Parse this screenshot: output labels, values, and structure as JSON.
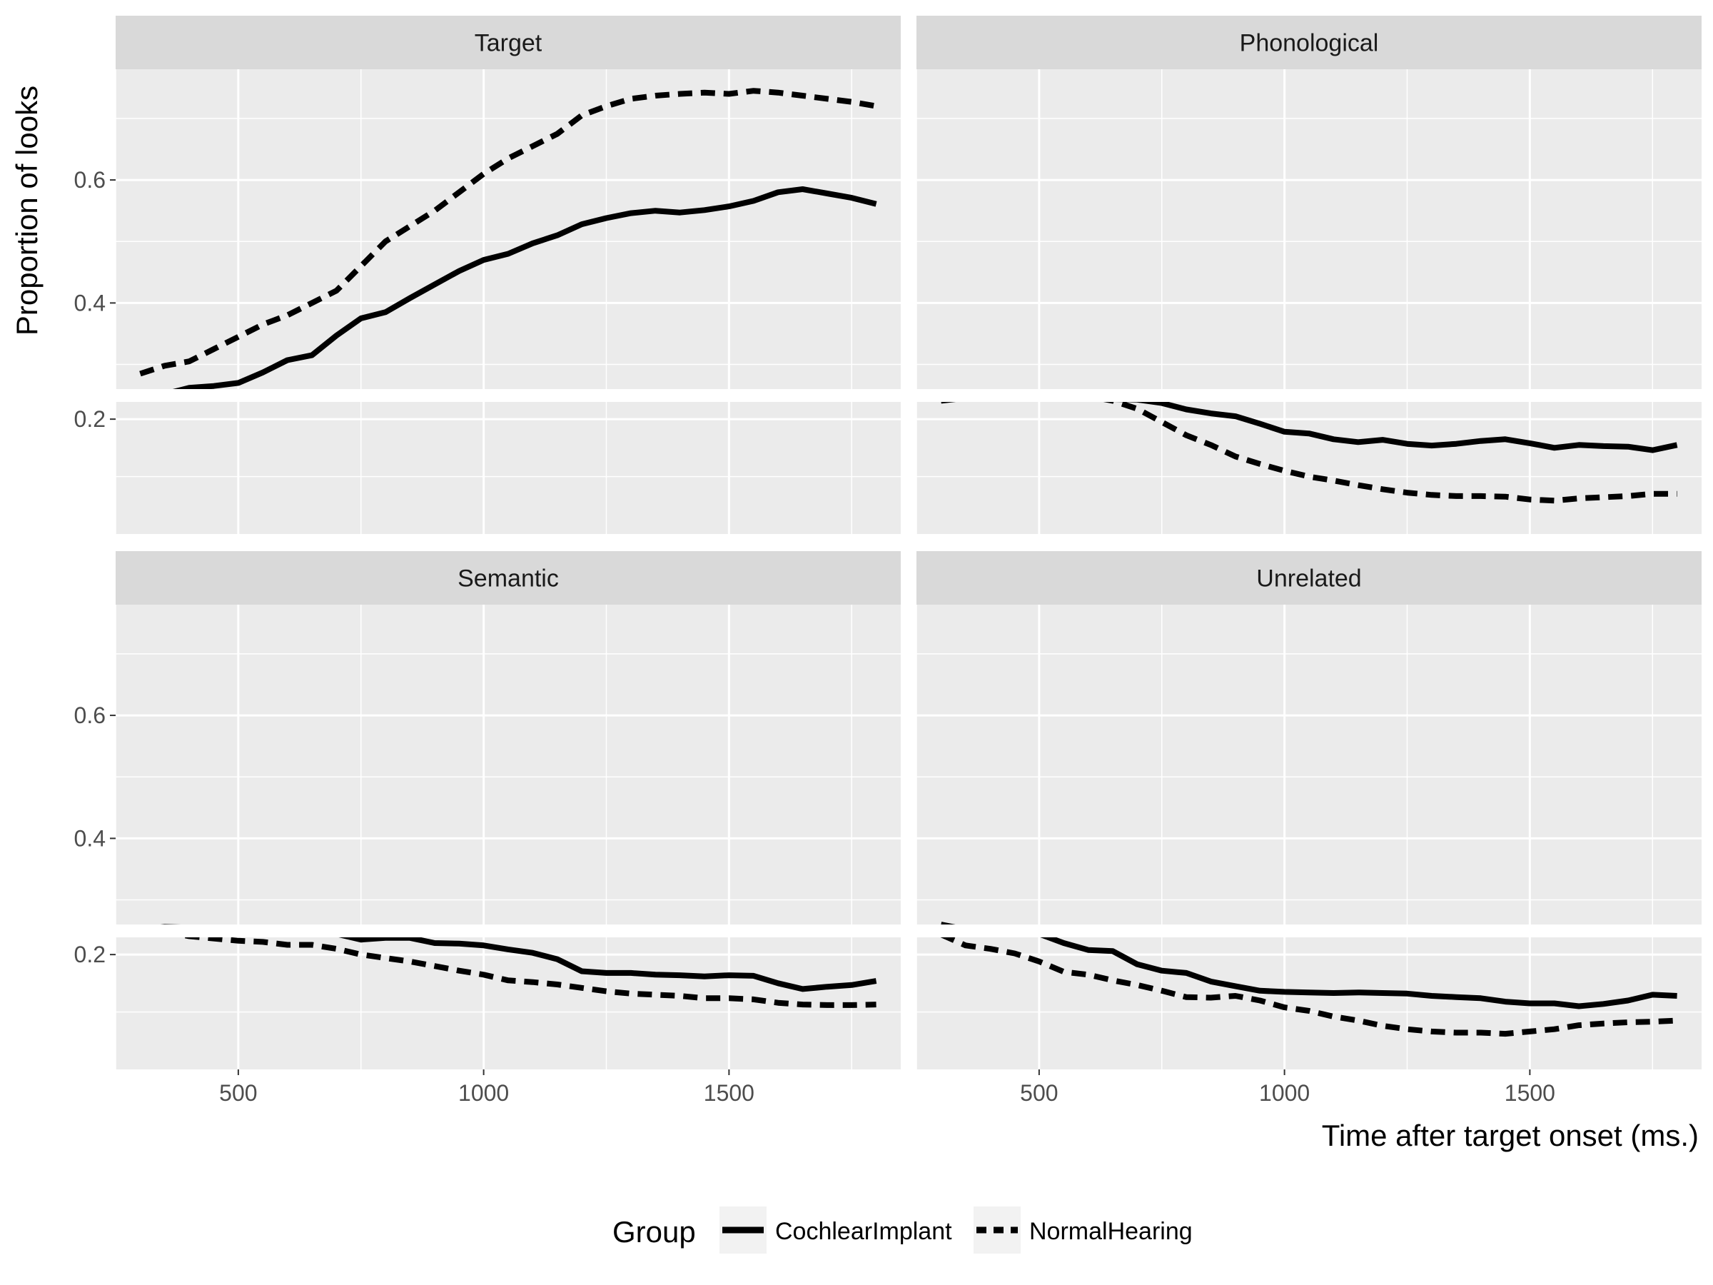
{
  "chart_data": {
    "type": "line",
    "facet_layout": "2x2 grid",
    "y_axis_break": "broken y axis between 0.23 and 0.26",
    "xlabel": "Time after target onset (ms.)",
    "ylabel": "Proportion of looks",
    "xlim": [
      250,
      1850
    ],
    "xticks": [
      500,
      1000,
      1500
    ],
    "yticks": [
      0.2,
      0.4,
      0.6
    ],
    "ylim_lower": [
      0.0,
      0.23
    ],
    "ylim_upper": [
      0.26,
      0.78
    ],
    "grid": true,
    "legend": {
      "title": "Group",
      "placement": "bottom",
      "entries": [
        {
          "label": "CochlearImplant",
          "linetype": "solid"
        },
        {
          "label": "NormalHearing",
          "linetype": "dashed"
        }
      ]
    },
    "panels": [
      {
        "title": "Target",
        "series": [
          {
            "name": "CochlearImplant",
            "linetype": "solid",
            "x": [
              300,
              350,
              400,
              450,
              500,
              550,
              600,
              650,
              700,
              750,
              800,
              850,
              900,
              950,
              1000,
              1050,
              1100,
              1150,
              1200,
              1250,
              1300,
              1350,
              1400,
              1450,
              1500,
              1550,
              1600,
              1650,
              1700,
              1750,
              1800
            ],
            "y": [
              0.255,
              0.252,
              0.262,
              0.265,
              0.27,
              0.287,
              0.307,
              0.315,
              0.347,
              0.375,
              0.385,
              0.408,
              0.43,
              0.452,
              0.47,
              0.48,
              0.497,
              0.51,
              0.528,
              0.538,
              0.546,
              0.55,
              0.547,
              0.551,
              0.557,
              0.566,
              0.58,
              0.585,
              0.578,
              0.571,
              0.561
            ]
          },
          {
            "name": "NormalHearing",
            "linetype": "dashed",
            "x": [
              300,
              350,
              400,
              450,
              500,
              550,
              600,
              650,
              700,
              750,
              800,
              850,
              900,
              950,
              1000,
              1050,
              1100,
              1150,
              1200,
              1250,
              1300,
              1350,
              1400,
              1450,
              1500,
              1550,
              1600,
              1650,
              1700,
              1750,
              1800
            ],
            "y": [
              0.285,
              0.298,
              0.305,
              0.325,
              0.345,
              0.365,
              0.38,
              0.4,
              0.42,
              0.46,
              0.5,
              0.525,
              0.55,
              0.58,
              0.61,
              0.635,
              0.655,
              0.675,
              0.705,
              0.72,
              0.732,
              0.737,
              0.74,
              0.742,
              0.74,
              0.745,
              0.742,
              0.737,
              0.732,
              0.727,
              0.72
            ]
          }
        ]
      },
      {
        "title": "Phonological",
        "series": [
          {
            "name": "CochlearImplant",
            "linetype": "solid",
            "x": [
              300,
              350,
              400,
              450,
              500,
              550,
              600,
              650,
              700,
              750,
              800,
              850,
              900,
              950,
              1000,
              1050,
              1100,
              1150,
              1200,
              1250,
              1300,
              1350,
              1400,
              1450,
              1500,
              1550,
              1600,
              1650,
              1700,
              1750,
              1800
            ],
            "y": [
              0.232,
              0.237,
              0.242,
              0.247,
              0.255,
              0.248,
              0.242,
              0.235,
              0.234,
              0.228,
              0.217,
              0.21,
              0.205,
              0.192,
              0.178,
              0.175,
              0.165,
              0.16,
              0.164,
              0.157,
              0.154,
              0.157,
              0.162,
              0.165,
              0.158,
              0.15,
              0.155,
              0.153,
              0.152,
              0.146,
              0.155
            ]
          },
          {
            "name": "NormalHearing",
            "linetype": "dashed",
            "x": [
              300,
              350,
              400,
              450,
              500,
              550,
              600,
              650,
              700,
              750,
              800,
              850,
              900,
              950,
              1000,
              1050,
              1100,
              1150,
              1200,
              1250,
              1300,
              1350,
              1400,
              1450,
              1500,
              1550,
              1600,
              1650,
              1700,
              1750,
              1800
            ],
            "y": [
              0.236,
              0.24,
              0.245,
              0.243,
              0.245,
              0.247,
              0.24,
              0.232,
              0.218,
              0.195,
              0.172,
              0.155,
              0.135,
              0.122,
              0.11,
              0.1,
              0.093,
              0.085,
              0.078,
              0.072,
              0.068,
              0.066,
              0.066,
              0.065,
              0.06,
              0.058,
              0.062,
              0.064,
              0.066,
              0.07,
              0.07
            ]
          }
        ]
      },
      {
        "title": "Semantic",
        "series": [
          {
            "name": "CochlearImplant",
            "linetype": "solid",
            "x": [
              300,
              350,
              400,
              450,
              500,
              550,
              600,
              650,
              700,
              750,
              800,
              850,
              900,
              950,
              1000,
              1050,
              1100,
              1150,
              1200,
              1250,
              1300,
              1350,
              1400,
              1450,
              1500,
              1550,
              1600,
              1650,
              1700,
              1750,
              1800
            ],
            "y": [
              0.252,
              0.256,
              0.255,
              0.246,
              0.238,
              0.242,
              0.242,
              0.243,
              0.236,
              0.226,
              0.229,
              0.229,
              0.22,
              0.219,
              0.216,
              0.209,
              0.203,
              0.192,
              0.171,
              0.168,
              0.168,
              0.165,
              0.164,
              0.162,
              0.164,
              0.163,
              0.15,
              0.14,
              0.144,
              0.147,
              0.154
            ]
          },
          {
            "name": "NormalHearing",
            "linetype": "dashed",
            "x": [
              300,
              350,
              400,
              450,
              500,
              550,
              600,
              650,
              700,
              750,
              800,
              850,
              900,
              950,
              1000,
              1050,
              1100,
              1150,
              1200,
              1250,
              1300,
              1350,
              1400,
              1450,
              1500,
              1550,
              1600,
              1650,
              1700,
              1750,
              1800
            ],
            "y": [
              0.244,
              0.24,
              0.232,
              0.228,
              0.224,
              0.222,
              0.217,
              0.217,
              0.21,
              0.2,
              0.194,
              0.188,
              0.18,
              0.172,
              0.165,
              0.155,
              0.152,
              0.148,
              0.142,
              0.136,
              0.132,
              0.13,
              0.128,
              0.124,
              0.124,
              0.122,
              0.116,
              0.113,
              0.112,
              0.112,
              0.113
            ]
          }
        ]
      },
      {
        "title": "Unrelated",
        "series": [
          {
            "name": "CochlearImplant",
            "linetype": "solid",
            "x": [
              300,
              350,
              400,
              450,
              500,
              550,
              600,
              650,
              700,
              750,
              800,
              850,
              900,
              950,
              1000,
              1050,
              1100,
              1150,
              1200,
              1250,
              1300,
              1350,
              1400,
              1450,
              1500,
              1550,
              1600,
              1650,
              1700,
              1750,
              1800
            ],
            "y": [
              0.26,
              0.252,
              0.24,
              0.24,
              0.236,
              0.22,
              0.208,
              0.206,
              0.183,
              0.172,
              0.168,
              0.153,
              0.145,
              0.137,
              0.135,
              0.134,
              0.133,
              0.134,
              0.133,
              0.132,
              0.128,
              0.126,
              0.124,
              0.118,
              0.115,
              0.115,
              0.11,
              0.114,
              0.12,
              0.13,
              0.128
            ]
          },
          {
            "name": "NormalHearing",
            "linetype": "dashed",
            "x": [
              300,
              350,
              400,
              450,
              500,
              550,
              600,
              650,
              700,
              750,
              800,
              850,
              900,
              950,
              1000,
              1050,
              1100,
              1150,
              1200,
              1250,
              1300,
              1350,
              1400,
              1450,
              1500,
              1550,
              1600,
              1650,
              1700,
              1750,
              1800
            ],
            "y": [
              0.235,
              0.216,
              0.21,
              0.202,
              0.188,
              0.17,
              0.165,
              0.155,
              0.147,
              0.137,
              0.126,
              0.125,
              0.128,
              0.12,
              0.108,
              0.102,
              0.092,
              0.085,
              0.076,
              0.07,
              0.066,
              0.064,
              0.064,
              0.062,
              0.066,
              0.07,
              0.077,
              0.08,
              0.082,
              0.083,
              0.085
            ]
          }
        ]
      }
    ]
  }
}
